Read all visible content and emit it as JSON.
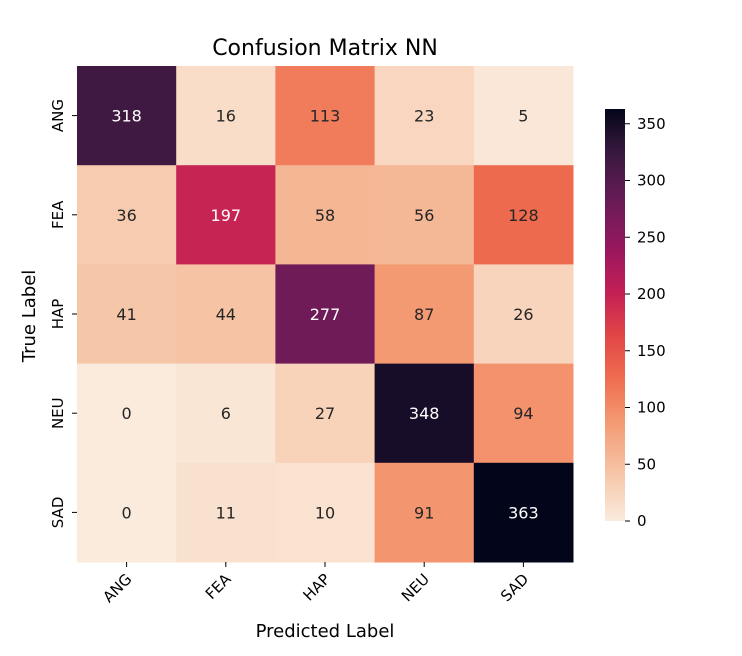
{
  "chart_data": {
    "type": "heatmap",
    "title": "Confusion Matrix NN",
    "xlabel": "Predicted Label",
    "ylabel": "True Label",
    "x_categories": [
      "ANG",
      "FEA",
      "HAP",
      "NEU",
      "SAD"
    ],
    "y_categories": [
      "ANG",
      "FEA",
      "HAP",
      "NEU",
      "SAD"
    ],
    "values": [
      [
        318,
        16,
        113,
        23,
        5
      ],
      [
        36,
        197,
        58,
        56,
        128
      ],
      [
        41,
        44,
        277,
        87,
        26
      ],
      [
        0,
        6,
        27,
        348,
        94
      ],
      [
        0,
        11,
        10,
        91,
        363
      ]
    ],
    "colorbar": {
      "min": 0,
      "max": 363,
      "ticks": [
        0,
        50,
        100,
        150,
        200,
        250,
        300,
        350
      ],
      "colormap": "rocket_r"
    },
    "annotations": "cell values"
  }
}
